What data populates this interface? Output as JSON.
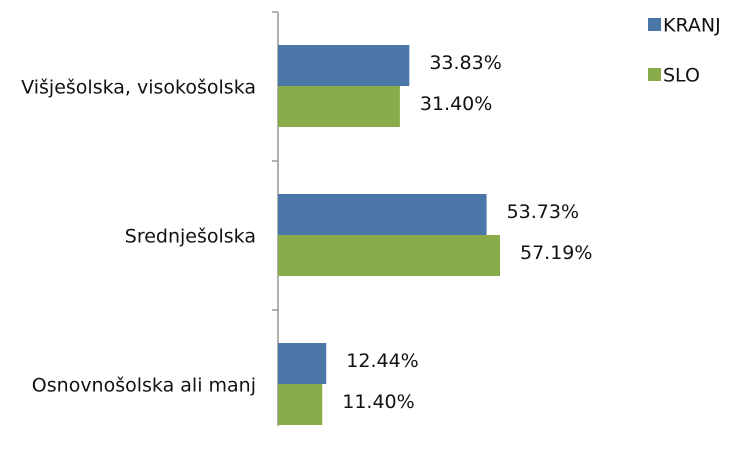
{
  "chart_data": {
    "type": "hbar",
    "categories": [
      "Višješolska, visokošolska",
      "Srednješolska",
      "Osnovnošolska ali manj"
    ],
    "series": [
      {
        "name": "KRANJ",
        "color": "#4a76a8",
        "values": [
          33.83,
          53.73,
          12.44
        ],
        "value_labels": [
          "33.83%",
          "53.73%",
          "12.44%"
        ]
      },
      {
        "name": "SLO",
        "color": "#8aab4a",
        "values": [
          31.4,
          57.19,
          11.4
        ],
        "value_labels": [
          "31.40%",
          "57.19%",
          "11.40%"
        ]
      }
    ],
    "legend": "top-right"
  }
}
